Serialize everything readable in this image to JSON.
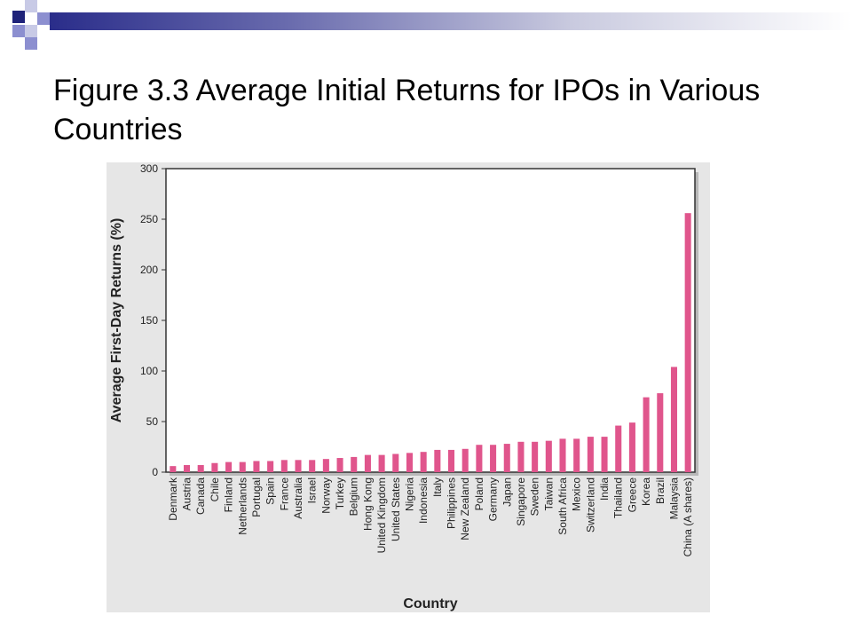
{
  "slide": {
    "title": "Figure 3.3 Average Initial Returns for IPOs in Various Countries"
  },
  "colors": {
    "bar": "#e0558c",
    "band_dark": "#2a2d8a",
    "deco_navy": "#1f237a",
    "deco_periwinkle": "#8c8fd0",
    "deco_light": "#c8cae6"
  },
  "chart_data": {
    "type": "bar",
    "xlabel": "Country",
    "ylabel": "Average First-Day Returns (%)",
    "ylim": [
      0,
      300
    ],
    "yticks": [
      0,
      50,
      100,
      150,
      200,
      250,
      300
    ],
    "grid": false,
    "categories": [
      "Denmark",
      "Austria",
      "Canada",
      "Chile",
      "Finland",
      "Netherlands",
      "Portugal",
      "Spain",
      "France",
      "Australia",
      "Israel",
      "Norway",
      "Turkey",
      "Belgium",
      "Hong Kong",
      "United Kingdom",
      "United States",
      "Nigeria",
      "Indonesia",
      "Italy",
      "Philippines",
      "New Zealand",
      "Poland",
      "Germany",
      "Japan",
      "Singapore",
      "Sweden",
      "Taiwan",
      "South Africa",
      "Mexico",
      "Switzerland",
      "India",
      "Thailand",
      "Greece",
      "Korea",
      "Brazil",
      "Malaysia",
      "China (A shares)"
    ],
    "values": [
      6,
      7,
      7,
      9,
      10,
      10,
      11,
      11,
      12,
      12,
      12,
      13,
      14,
      15,
      17,
      17,
      18,
      19,
      20,
      22,
      22,
      23,
      27,
      27,
      28,
      30,
      30,
      31,
      33,
      33,
      35,
      35,
      46,
      49,
      74,
      78,
      104,
      256
    ]
  }
}
